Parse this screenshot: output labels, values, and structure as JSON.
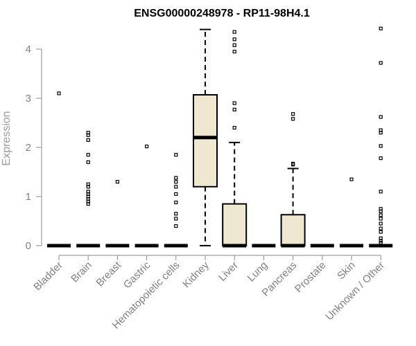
{
  "chart_data": {
    "type": "box",
    "title": "ENSG00000248978 - RP11-98H4.1",
    "xlabel": "",
    "ylabel": "Expression",
    "ylim": [
      0,
      4.45
    ],
    "yticks": [
      0,
      1,
      2,
      3,
      4
    ],
    "box_fill": "#ede8cf",
    "categories": [
      "Bladder",
      "Brain",
      "Breast",
      "Gastric",
      "Hematopoietic cells",
      "Kidney",
      "Liver",
      "Lung",
      "Pancreas",
      "Prostate",
      "Skin",
      "Unknown / Other"
    ],
    "boxes": [
      {
        "q1": 0,
        "median": 0,
        "q3": 0,
        "whisker_low": 0,
        "whisker_high": 0,
        "outliers": [
          3.1
        ]
      },
      {
        "q1": 0,
        "median": 0,
        "q3": 0,
        "whisker_low": 0,
        "whisker_high": 0,
        "outliers": [
          2.3,
          2.25,
          2.15,
          1.85,
          1.7,
          1.25,
          1.2,
          1.1,
          1.05,
          1.0,
          0.95,
          0.9,
          0.85
        ]
      },
      {
        "q1": 0,
        "median": 0,
        "q3": 0,
        "whisker_low": 0,
        "whisker_high": 0,
        "outliers": [
          1.3
        ]
      },
      {
        "q1": 0,
        "median": 0,
        "q3": 0,
        "whisker_low": 0,
        "whisker_high": 0,
        "outliers": [
          2.02
        ]
      },
      {
        "q1": 0,
        "median": 0,
        "q3": 0,
        "whisker_low": 0,
        "whisker_high": 0,
        "outliers": [
          1.85,
          1.38,
          1.3,
          1.2,
          1.05,
          0.88,
          0.65,
          0.55,
          0.4
        ]
      },
      {
        "q1": 1.2,
        "median": 2.2,
        "q3": 3.07,
        "whisker_low": 0,
        "whisker_high": 4.4,
        "outliers": []
      },
      {
        "q1": 0,
        "median": 0,
        "q3": 0.85,
        "whisker_low": 0,
        "whisker_high": 2.1,
        "outliers": [
          4.35,
          4.2,
          4.08,
          3.95,
          2.9,
          2.77,
          2.4
        ]
      },
      {
        "q1": 0,
        "median": 0,
        "q3": 0,
        "whisker_low": 0,
        "whisker_high": 0,
        "outliers": []
      },
      {
        "q1": 0,
        "median": 0,
        "q3": 0.63,
        "whisker_low": 0,
        "whisker_high": 1.57,
        "outliers": [
          2.68,
          2.58,
          1.67,
          1.65
        ]
      },
      {
        "q1": 0,
        "median": 0,
        "q3": 0,
        "whisker_low": 0,
        "whisker_high": 0,
        "outliers": []
      },
      {
        "q1": 0,
        "median": 0,
        "q3": 0,
        "whisker_low": 0,
        "whisker_high": 0,
        "outliers": [
          1.35
        ]
      },
      {
        "q1": 0,
        "median": 0,
        "q3": 0,
        "whisker_low": 0,
        "whisker_high": 0,
        "outliers": [
          4.42,
          3.72,
          2.62,
          2.35,
          2.3,
          2.03,
          1.78,
          1.1,
          0.75,
          0.7,
          0.62,
          0.55,
          0.45,
          0.35,
          0.28,
          0.15,
          0.1,
          0.06
        ]
      }
    ]
  }
}
